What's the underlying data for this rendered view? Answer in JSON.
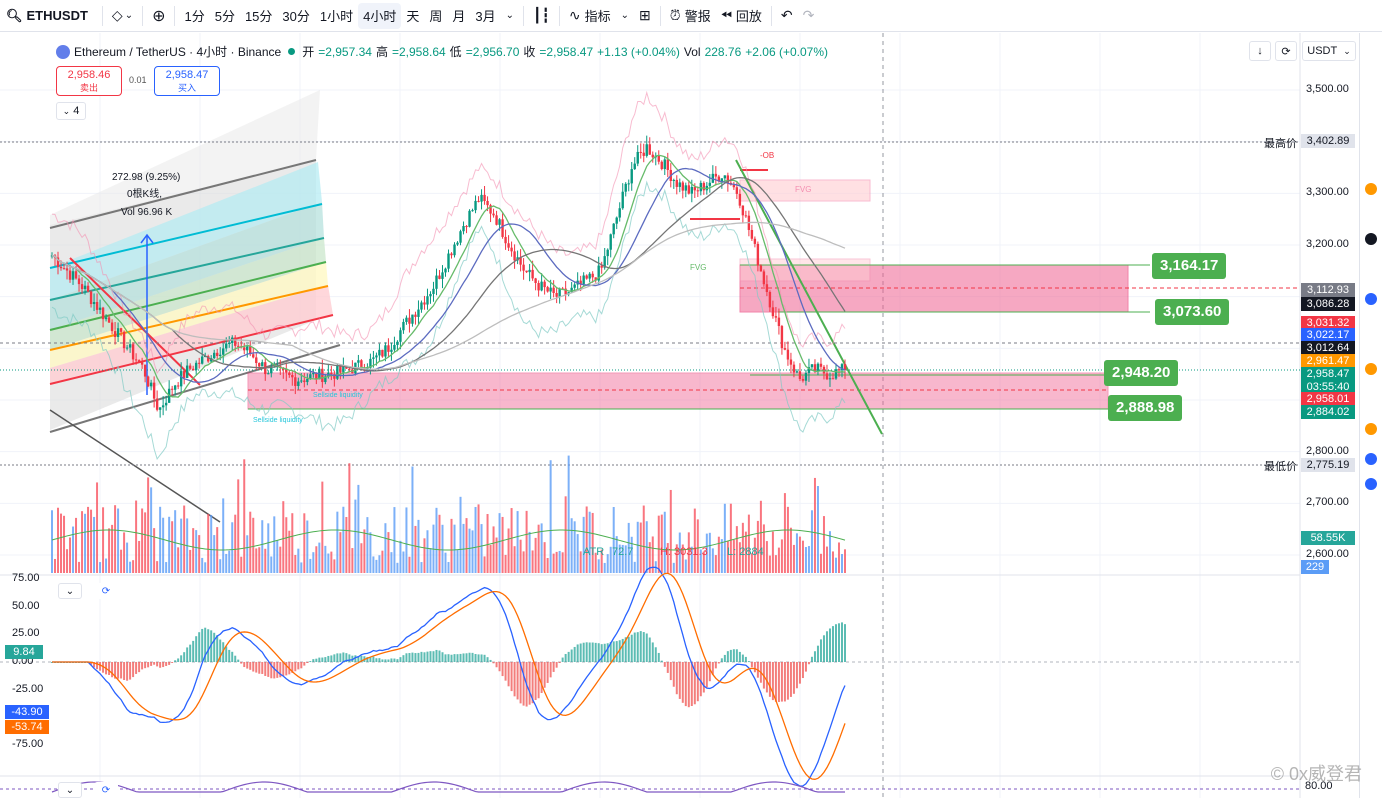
{
  "toolbar": {
    "symbol": "ETHUSDT",
    "intervals": [
      "1分",
      "5分",
      "15分",
      "30分",
      "1小时",
      "4小时",
      "天",
      "周",
      "月",
      "3月"
    ],
    "active_interval": "4小时",
    "indicators_label": "指标",
    "alert_label": "警报",
    "replay_label": "回放"
  },
  "legend": {
    "title": "Ethereum / TetherUS · 4小时 · Binance",
    "open_label": "开",
    "open": "=2,957.34",
    "high_label": "高",
    "high": "=2,958.64",
    "low_label": "低",
    "low": "=2,956.70",
    "close_label": "收",
    "close": "=2,958.47",
    "change": "+1.13 (+0.04%)",
    "vol_label": "Vol",
    "vol": "228.76",
    "vol_change": "+2.06 (+0.07%)"
  },
  "trade": {
    "sell_price": "2,958.46",
    "sell_label": "卖出",
    "buy_price": "2,958.47",
    "buy_label": "买入",
    "spread": "0.01"
  },
  "collapsed_count": "4",
  "currency": "USDT",
  "measure": {
    "line1": "272.98 (9.25%)",
    "line2": "0根K线,",
    "line3": "Vol 96.96 K"
  },
  "price_axis": [
    {
      "label": "3,500.00",
      "price": 3500
    },
    {
      "label": "3,300.00",
      "price": 3300
    },
    {
      "label": "3,200.00",
      "price": 3200
    },
    {
      "label": "2,800.00",
      "price": 2800
    },
    {
      "label": "2,700.00",
      "price": 2700
    },
    {
      "label": "2,600.00",
      "price": 2600
    }
  ],
  "extremes": {
    "high_label": "最高价",
    "high": "3,402.89",
    "low_label": "最低价",
    "low": "2,775.19"
  },
  "price_tags": [
    {
      "label": "3,112.93",
      "color": "#787b86",
      "price": 3112.93
    },
    {
      "label": "3,086.28",
      "color": "#131722",
      "price": 3086.28
    },
    {
      "label": "3,031.32",
      "color": "#f23645",
      "price": 3050
    },
    {
      "label": "3,022.17",
      "color": "#2962ff",
      "price": 3025
    },
    {
      "label": "3,012.64",
      "color": "#131722",
      "price": 3000
    },
    {
      "label": "2,961.47",
      "color": "#ff9800",
      "price": 2975
    },
    {
      "label": "2,958.47",
      "color": "#089981",
      "price": 2951
    },
    {
      "label": "03:55:40",
      "color": "#089981",
      "price": 2926
    },
    {
      "label": "2,958.01",
      "color": "#f23645",
      "price": 2902
    },
    {
      "label": "2,884.02",
      "color": "#089981",
      "price": 2876
    }
  ],
  "big_tags": [
    {
      "label": "3,164.17"
    },
    {
      "label": "3,073.60"
    },
    {
      "label": "2,948.20"
    },
    {
      "label": "2,888.98"
    }
  ],
  "drawings": {
    "fvg1": "FVG",
    "fvg2": "FVG",
    "ob": "-OB",
    "sellside1": "Sellside liquidity",
    "sellside2": "Sellside liquidity"
  },
  "atr": {
    "label": "ATR",
    "v1": "72.7",
    "v2": "H: 3031.3",
    "v3": "L: 2884"
  },
  "volume": {
    "ma": "58.55K",
    "current": "229"
  },
  "macd_axis": [
    "75.00",
    "50.00",
    "25.00",
    "0.00",
    "-25.00",
    "-75.00"
  ],
  "macd_tags": [
    {
      "label": "9.84",
      "color": "#26a69a"
    },
    {
      "label": "-43.90",
      "color": "#2962ff"
    },
    {
      "label": "-53.74",
      "color": "#ff6d00"
    }
  ],
  "rsi_axis": "80.00",
  "watermark": "© 0x威登君",
  "chart_data": {
    "type": "line",
    "title": "Ethereum / TetherUS · 4小时 · Binance",
    "ylim": [
      2560,
      3560
    ],
    "series": [
      {
        "name": "ETHUSDT",
        "values": [
          3180,
          3150,
          3120,
          3080,
          3040,
          3000,
          2960,
          2880,
          2930,
          2960,
          2980,
          3000,
          3010,
          2990,
          2960,
          2950,
          2940,
          2945,
          2950,
          2955,
          2965,
          2975,
          3000,
          3040,
          3080,
          3120,
          3180,
          3240,
          3290,
          3260,
          3200,
          3150,
          3120,
          3100,
          3110,
          3130,
          3150,
          3250,
          3350,
          3390,
          3360,
          3320,
          3300,
          3320,
          3340,
          3300,
          3200,
          3100,
          3000,
          2940,
          2960,
          2950,
          2958
        ]
      }
    ],
    "levels": [
      3402.89,
      3164.17,
      3073.6,
      2948.2,
      2888.98,
      2775.19
    ]
  }
}
